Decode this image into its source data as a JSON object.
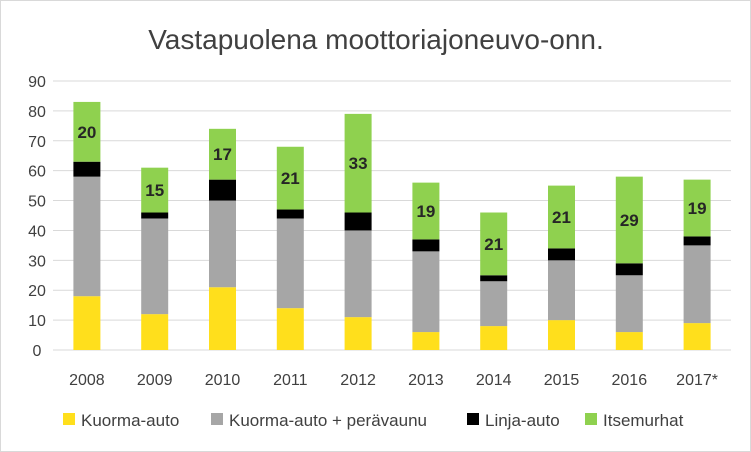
{
  "chart_data": {
    "type": "bar",
    "stacked": true,
    "title": "Vastapuolena moottoriajoneuvo-onn.",
    "xlabel": "",
    "ylabel": "",
    "ylim": [
      0,
      90
    ],
    "yticks": [
      0,
      10,
      20,
      30,
      40,
      50,
      60,
      70,
      80,
      90
    ],
    "grid": true,
    "legend_position": "bottom",
    "categories": [
      "2008",
      "2009",
      "2010",
      "2011",
      "2012",
      "2013",
      "2014",
      "2015",
      "2016",
      "2017*"
    ],
    "series": [
      {
        "name": "Kuorma-auto",
        "color": "#ffdf1c",
        "values": [
          18,
          12,
          21,
          14,
          11,
          6,
          8,
          10,
          6,
          9
        ]
      },
      {
        "name": "Kuorma-auto + perävaunu",
        "color": "#a6a6a6",
        "values": [
          40,
          32,
          29,
          30,
          29,
          27,
          15,
          20,
          19,
          26
        ]
      },
      {
        "name": "Linja-auto",
        "color": "#000000",
        "values": [
          5,
          2,
          7,
          3,
          6,
          4,
          2,
          4,
          4,
          3
        ]
      },
      {
        "name": "Itsemurhat",
        "color": "#8fd14f",
        "values": [
          20,
          15,
          17,
          21,
          33,
          19,
          21,
          21,
          29,
          19
        ],
        "show_labels": true
      }
    ]
  }
}
